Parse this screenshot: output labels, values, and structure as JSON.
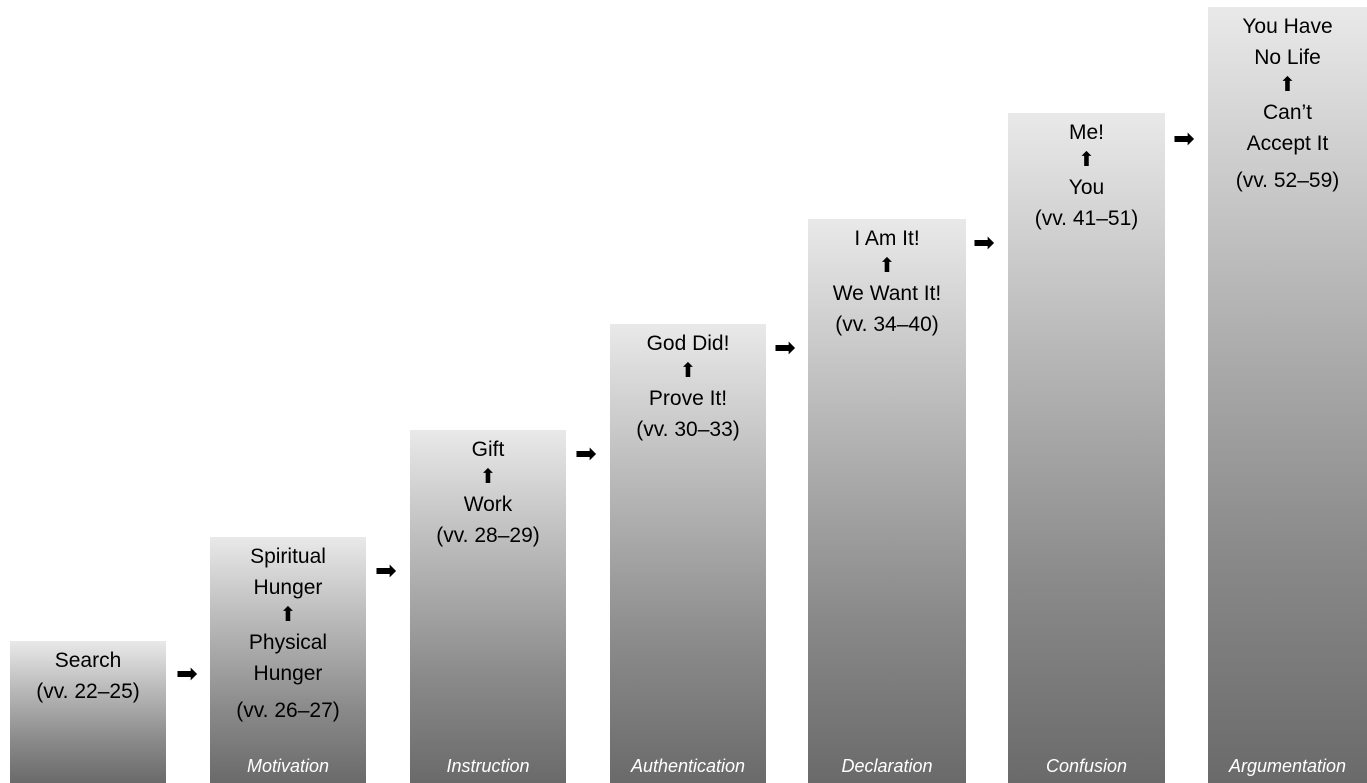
{
  "steps": [
    {
      "title": [
        "Search"
      ],
      "verses": "(vv. 22–25)",
      "label": ""
    },
    {
      "title": [
        "Spiritual",
        "Hunger"
      ],
      "arrow": "⬆",
      "sub": [
        "Physical",
        "Hunger"
      ],
      "verses": "(vv. 26–27)",
      "label": "Motivation"
    },
    {
      "title": [
        "Gift"
      ],
      "arrow": "⬆",
      "sub": [
        "Work"
      ],
      "verses": "(vv. 28–29)",
      "label": "Instruction"
    },
    {
      "title": [
        "God Did!"
      ],
      "arrow": "⬆",
      "sub": [
        "Prove It!"
      ],
      "verses": "(vv. 30–33)",
      "label": "Authentication"
    },
    {
      "title": [
        "I Am It!"
      ],
      "arrow": "⬆",
      "sub": [
        "We Want It!"
      ],
      "verses": "(vv. 34–40)",
      "label": "Declaration"
    },
    {
      "title": [
        "Me!"
      ],
      "arrow": "⬆",
      "sub": [
        "You"
      ],
      "verses": "(vv. 41–51)",
      "label": "Confusion"
    },
    {
      "title": [
        "You Have",
        "No Life"
      ],
      "arrow": "⬆",
      "sub": [
        "Can’t",
        "Accept It"
      ],
      "verses": "(vv. 52–59)",
      "label": "Argumentation"
    }
  ],
  "connector": "➡"
}
